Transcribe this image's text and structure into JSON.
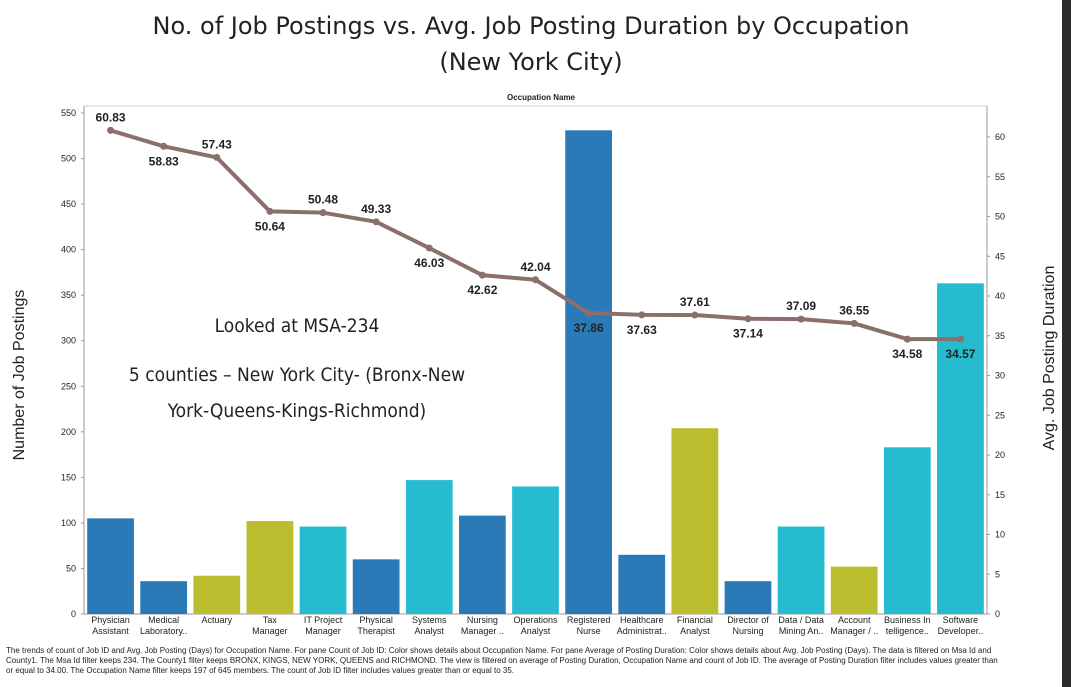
{
  "chart_data": {
    "type": "bar+line",
    "title_line1": "No. of Job Postings vs. Avg. Job Posting Duration by Occupation",
    "title_line2": "(New York City)",
    "header_label": "Occupation Name",
    "ylabel_left": "Number of Job Postings",
    "ylabel_right": "Avg. Job Posting Duration",
    "ylim_left": [
      0,
      550
    ],
    "ylim_right": [
      0,
      63
    ],
    "left_ticks": [
      0,
      50,
      100,
      150,
      200,
      250,
      300,
      350,
      400,
      450,
      500,
      550
    ],
    "right_ticks": [
      0,
      5,
      10,
      15,
      20,
      25,
      30,
      35,
      40,
      45,
      50,
      55,
      60
    ],
    "categories": [
      [
        "Physician",
        "Assistant"
      ],
      [
        "Medical",
        "Laboratory.."
      ],
      [
        "Actuary"
      ],
      [
        "Tax",
        "Manager"
      ],
      [
        "IT Project",
        "Manager"
      ],
      [
        "Physical",
        "Therapist"
      ],
      [
        "Systems",
        "Analyst"
      ],
      [
        "Nursing",
        "Manager .."
      ],
      [
        "Operations",
        "Analyst"
      ],
      [
        "Registered",
        "Nurse"
      ],
      [
        "Healthcare",
        "Administrat.."
      ],
      [
        "Financial",
        "Analyst"
      ],
      [
        "Director of",
        "Nursing"
      ],
      [
        "Data / Data",
        "Mining An.."
      ],
      [
        "Account",
        "Manager / .."
      ],
      [
        "Business In",
        "telligence.."
      ],
      [
        "Software",
        "Developer.."
      ]
    ],
    "series": [
      {
        "kind": "bar",
        "values": [
          105,
          36,
          42,
          102,
          96,
          60,
          147,
          108,
          140,
          531,
          65,
          204,
          36,
          96,
          52,
          183,
          363
        ],
        "colors": [
          "#2a7ab8",
          "#2a7ab8",
          "#b9bd2e",
          "#b9bd2e",
          "#26bcd0",
          "#2a7ab8",
          "#26bcd0",
          "#2a7ab8",
          "#26bcd0",
          "#2a7ab8",
          "#2a7ab8",
          "#b9bd2e",
          "#2a7ab8",
          "#26bcd0",
          "#b9bd2e",
          "#26bcd0",
          "#26bcd0"
        ]
      },
      {
        "kind": "line",
        "axis": "right",
        "color": "#8a6f6b",
        "values": [
          60.83,
          58.83,
          57.43,
          50.64,
          50.48,
          49.33,
          46.03,
          42.62,
          42.04,
          37.86,
          37.63,
          37.61,
          37.14,
          37.09,
          36.55,
          34.58,
          34.57
        ],
        "labels": [
          "60.83",
          "58.83",
          "57.43",
          "50.64",
          "50.48",
          "49.33",
          "46.03",
          "42.62",
          "42.04",
          "37.86",
          "37.63",
          "37.61",
          "37.14",
          "37.09",
          "36.55",
          "34.58",
          "34.57"
        ],
        "label_pos": [
          "above",
          "below",
          "above",
          "below",
          "above",
          "above",
          "below",
          "below",
          "above",
          "below",
          "below",
          "above",
          "below",
          "above",
          "above",
          "below",
          "below"
        ]
      }
    ],
    "annotations": [
      "Looked at MSA-234",
      "5 counties – New York City-  (Bronx-New",
      "York-Queens-Kings-Richmond)"
    ],
    "grid": false,
    "legend": "none"
  },
  "footnote": "The trends of count of Job ID and Avg. Job Posting (Days) for Occupation Name.  For pane Count of Job ID:  Color shows details about Occupation Name.  For pane Average of Posting Duration:  Color shows details about Avg. Job Posting (Days). The data is filtered on Msa Id and County1. The Msa Id filter keeps 234. The County1 filter keeps BRONX, KINGS, NEW YORK, QUEENS and RICHMOND. The view is filtered on average of Posting Duration, Occupation Name and count of Job ID. The average of Posting Duration filter includes values greater than or equal to 34.00. The Occupation Name filter keeps 197 of 645 members. The count of Job ID filter includes values greater than or equal to 35."
}
